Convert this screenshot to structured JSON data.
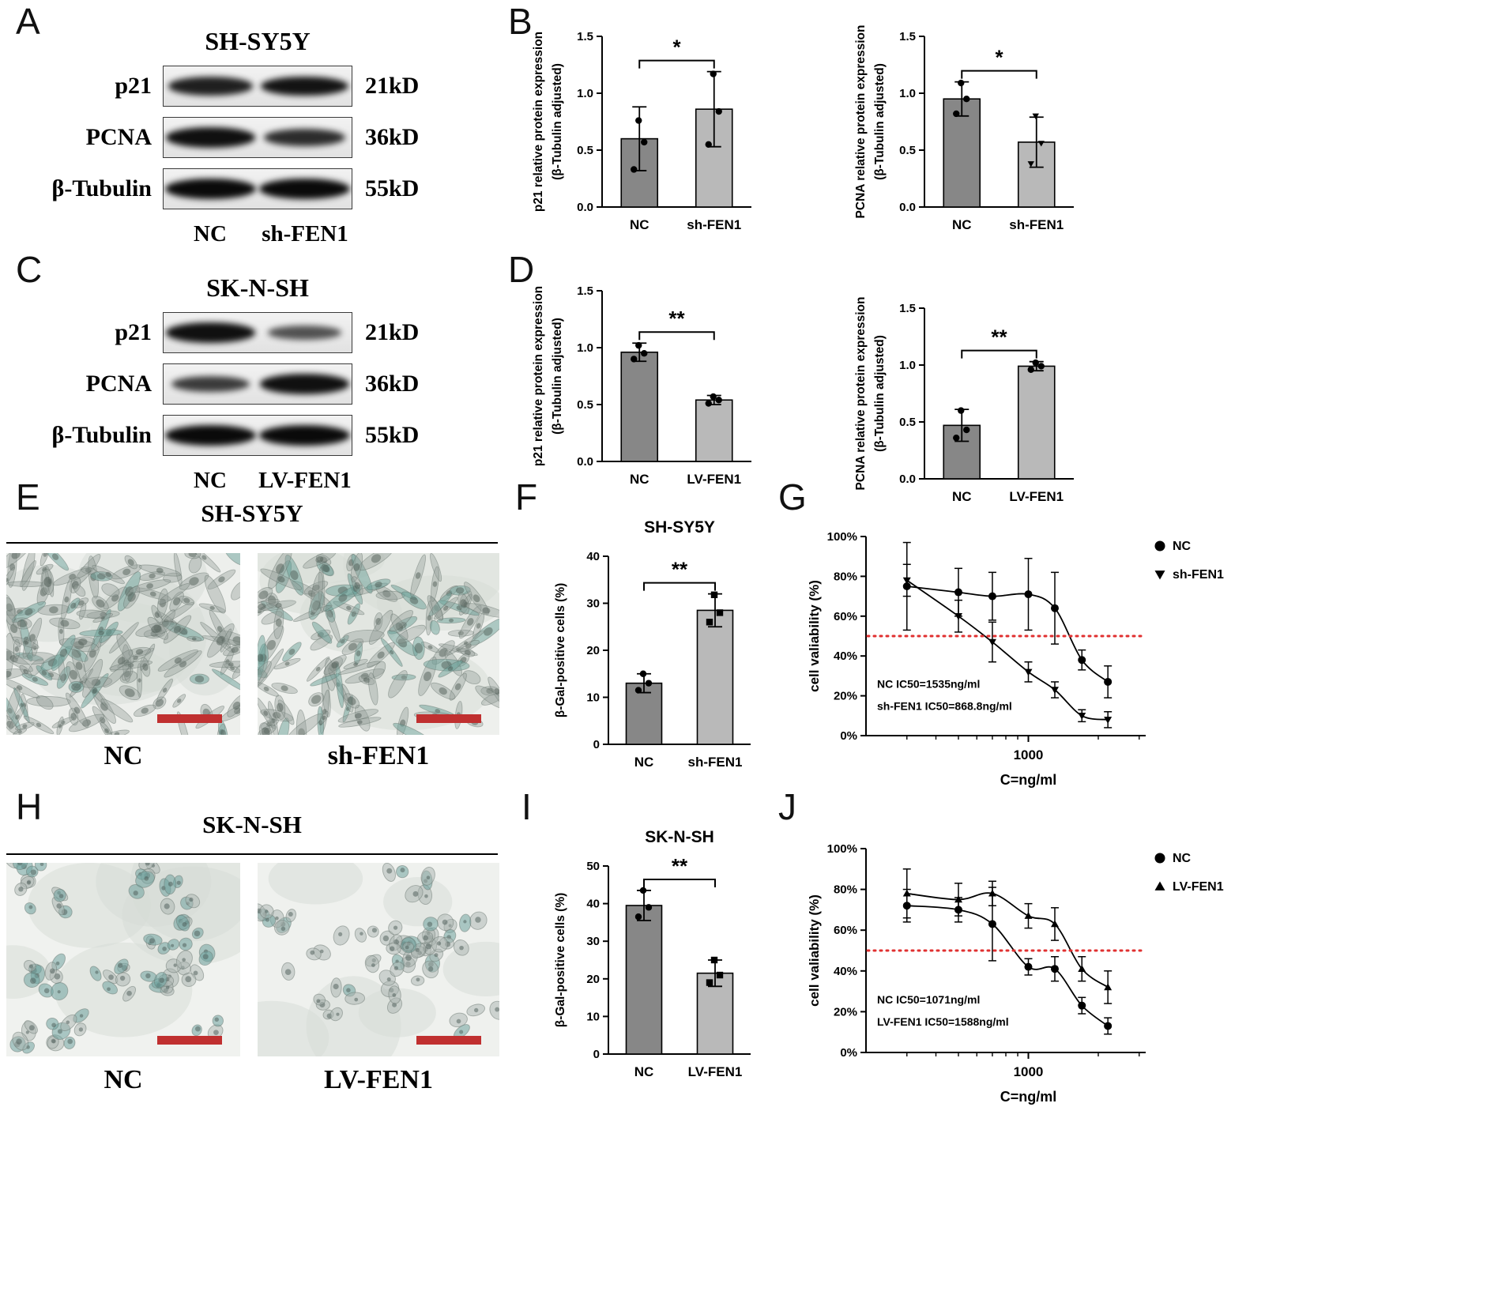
{
  "figure": {
    "panels": {
      "A": {
        "letter": "A",
        "title": "SH-SY5Y",
        "lanes": [
          "NC",
          "sh-FEN1"
        ],
        "rows": [
          {
            "protein": "p21",
            "kd": "21kD",
            "bands": [
              0.82,
              0.92
            ]
          },
          {
            "protein": "PCNA",
            "kd": "36kD",
            "bands": [
              0.95,
              0.72
            ]
          },
          {
            "protein": "β-Tubulin",
            "kd": "55kD",
            "bands": [
              1.0,
              1.0
            ]
          }
        ]
      },
      "B": {
        "letter": "B"
      },
      "C": {
        "letter": "C",
        "title": "SK-N-SH",
        "lanes": [
          "NC",
          "LV-FEN1"
        ],
        "rows": [
          {
            "protein": "p21",
            "kd": "21kD",
            "bands": [
              0.95,
              0.42
            ]
          },
          {
            "protein": "PCNA",
            "kd": "36kD",
            "bands": [
              0.6,
              0.95
            ]
          },
          {
            "protein": "β-Tubulin",
            "kd": "55kD",
            "bands": [
              1.0,
              1.0
            ]
          }
        ]
      },
      "D": {
        "letter": "D"
      },
      "E": {
        "letter": "E",
        "title": "SH-SY5Y",
        "images": [
          {
            "label": "NC"
          },
          {
            "label": "sh-FEN1"
          }
        ]
      },
      "F": {
        "letter": "F"
      },
      "G": {
        "letter": "G"
      },
      "H": {
        "letter": "H",
        "title": "SK-N-SH",
        "images": [
          {
            "label": "NC"
          },
          {
            "label": "LV-FEN1"
          }
        ]
      },
      "I": {
        "letter": "I"
      },
      "J": {
        "letter": "J"
      }
    }
  },
  "chart_data": [
    {
      "id": "b1",
      "type": "bar",
      "panel": "B",
      "categories": [
        "NC",
        "sh-FEN1"
      ],
      "values": [
        0.6,
        0.86
      ],
      "errors": [
        0.28,
        0.33
      ],
      "points": [
        [
          0.33,
          0.57,
          0.76
        ],
        [
          0.55,
          0.84,
          1.17
        ]
      ],
      "point_markers": [
        "circle",
        "circle"
      ],
      "bar_colors": [
        "#878787",
        "#b9b9b9"
      ],
      "ylabel": [
        "p21 relative protein expression",
        "(β-Tubulin adjusted)"
      ],
      "ylim": [
        0,
        1.5
      ],
      "yticks": [
        0,
        0.5,
        1,
        1.5
      ],
      "ytick_labels": [
        "0.0",
        "0.5",
        "1.0",
        "1.5"
      ],
      "significance": "*"
    },
    {
      "id": "b2",
      "type": "bar",
      "panel": "B",
      "categories": [
        "NC",
        "sh-FEN1"
      ],
      "values": [
        0.95,
        0.57
      ],
      "errors": [
        0.15,
        0.22
      ],
      "points": [
        [
          0.82,
          0.95,
          1.09
        ],
        [
          0.38,
          0.56,
          0.8
        ]
      ],
      "point_markers": [
        "circle",
        "triangle-down"
      ],
      "bar_colors": [
        "#878787",
        "#b9b9b9"
      ],
      "ylabel": [
        "PCNA relative protein expression",
        "(β-Tubulin adjusted)"
      ],
      "ylim": [
        0,
        1.5
      ],
      "yticks": [
        0,
        0.5,
        1,
        1.5
      ],
      "ytick_labels": [
        "0.0",
        "0.5",
        "1.0",
        "1.5"
      ],
      "significance": "*"
    },
    {
      "id": "d1",
      "type": "bar",
      "panel": "D",
      "categories": [
        "NC",
        "LV-FEN1"
      ],
      "values": [
        0.96,
        0.54
      ],
      "errors": [
        0.08,
        0.04
      ],
      "points": [
        [
          0.9,
          0.95,
          1.02
        ],
        [
          0.51,
          0.54,
          0.57
        ]
      ],
      "point_markers": [
        "circle",
        "circle"
      ],
      "bar_colors": [
        "#878787",
        "#b9b9b9"
      ],
      "ylabel": [
        "p21 relative protein expression",
        "(β-Tubulin adjusted)"
      ],
      "ylim": [
        0,
        1.5
      ],
      "yticks": [
        0,
        0.5,
        1,
        1.5
      ],
      "ytick_labels": [
        "0.0",
        "0.5",
        "1.0",
        "1.5"
      ],
      "significance": "**"
    },
    {
      "id": "d2",
      "type": "bar",
      "panel": "D",
      "categories": [
        "NC",
        "LV-FEN1"
      ],
      "values": [
        0.47,
        0.99
      ],
      "errors": [
        0.14,
        0.04
      ],
      "points": [
        [
          0.36,
          0.43,
          0.6
        ],
        [
          0.96,
          0.99,
          1.02
        ]
      ],
      "point_markers": [
        "circle",
        "circle"
      ],
      "bar_colors": [
        "#878787",
        "#b9b9b9"
      ],
      "ylabel": [
        "PCNA relative protein expression",
        "(β-Tubulin adjusted)"
      ],
      "ylim": [
        0,
        1.5
      ],
      "yticks": [
        0,
        0.5,
        1,
        1.5
      ],
      "ytick_labels": [
        "0.0",
        "0.5",
        "1.0",
        "1.5"
      ],
      "significance": "**"
    },
    {
      "id": "f",
      "type": "bar",
      "panel": "F",
      "title": "SH-SY5Y",
      "categories": [
        "NC",
        "sh-FEN1"
      ],
      "values": [
        13,
        28.5
      ],
      "errors": [
        2,
        3.5
      ],
      "points": [
        [
          11.5,
          13,
          15
        ],
        [
          26,
          28,
          31.8
        ]
      ],
      "point_markers": [
        "circle",
        "square"
      ],
      "bar_colors": [
        "#878787",
        "#b9b9b9"
      ],
      "ylabel": [
        "β-Gal-positive cells (%)"
      ],
      "ylim": [
        0,
        40
      ],
      "yticks": [
        0,
        10,
        20,
        30,
        40
      ],
      "ytick_labels": [
        "0",
        "10",
        "20",
        "30",
        "40"
      ],
      "significance": "**"
    },
    {
      "id": "i",
      "type": "bar",
      "panel": "I",
      "title": "SK-N-SH",
      "categories": [
        "NC",
        "LV-FEN1"
      ],
      "values": [
        39.5,
        21.5
      ],
      "errors": [
        4,
        3.5
      ],
      "points": [
        [
          36.5,
          39,
          43.5
        ],
        [
          19,
          21,
          25
        ]
      ],
      "point_markers": [
        "circle",
        "square"
      ],
      "bar_colors": [
        "#878787",
        "#b9b9b9"
      ],
      "ylabel": [
        "β-Gal-positive cells (%)"
      ],
      "ylim": [
        0,
        50
      ],
      "yticks": [
        0,
        10,
        20,
        30,
        40,
        50
      ],
      "ytick_labels": [
        "0",
        "10",
        "20",
        "30",
        "40",
        "50"
      ],
      "significance": "**"
    },
    {
      "id": "g",
      "type": "line",
      "panel": "G",
      "ylabel": "cell valiability (%)",
      "xlabel": "C=ng/ml",
      "yticks": [
        0,
        20,
        40,
        60,
        80,
        100
      ],
      "xlim": [
        200,
        3200
      ],
      "xticks": [
        1000
      ],
      "minor_xticks": [
        300,
        400,
        500,
        600,
        700,
        800,
        900,
        2000,
        3000
      ],
      "reference_line": {
        "y": 50,
        "color": "#e03030"
      },
      "annotations": [
        "NC IC50=1535ng/ml",
        "sh-FEN1 IC50=868.8ng/ml"
      ],
      "series": [
        {
          "name": "NC",
          "marker": "circle",
          "x": [
            300,
            500,
            700,
            1000,
            1300,
            1700,
            2200
          ],
          "y": [
            75,
            72,
            70,
            71,
            64,
            38,
            27
          ],
          "err": [
            22,
            12,
            12,
            18,
            18,
            5,
            8
          ]
        },
        {
          "name": "sh-FEN1",
          "marker": "triangle-down",
          "x": [
            300,
            500,
            700,
            1000,
            1300,
            1700,
            2200
          ],
          "y": [
            78,
            60,
            47,
            32,
            23,
            10,
            8
          ],
          "err": [
            8,
            8,
            10,
            5,
            4,
            3,
            4
          ]
        }
      ]
    },
    {
      "id": "j",
      "type": "line",
      "panel": "J",
      "ylabel": "cell valiability (%)",
      "xlabel": "C=ng/ml",
      "yticks": [
        0,
        20,
        40,
        60,
        80,
        100
      ],
      "xlim": [
        200,
        3200
      ],
      "xticks": [
        1000
      ],
      "minor_xticks": [
        300,
        400,
        500,
        600,
        700,
        800,
        900,
        2000,
        3000
      ],
      "reference_line": {
        "y": 50,
        "color": "#e03030"
      },
      "annotations": [
        "NC IC50=1071ng/ml",
        "LV-FEN1 IC50=1588ng/ml"
      ],
      "series": [
        {
          "name": "NC",
          "marker": "circle",
          "x": [
            300,
            500,
            700,
            1000,
            1300,
            1700,
            2200
          ],
          "y": [
            72,
            70,
            63,
            42,
            41,
            23,
            13
          ],
          "err": [
            8,
            6,
            18,
            4,
            6,
            4,
            4
          ]
        },
        {
          "name": "LV-FEN1",
          "marker": "triangle-up",
          "x": [
            300,
            500,
            700,
            1000,
            1300,
            1700,
            2200
          ],
          "y": [
            78,
            75,
            78,
            67,
            63,
            41,
            32
          ],
          "err": [
            12,
            8,
            6,
            6,
            8,
            6,
            8
          ]
        }
      ]
    }
  ]
}
